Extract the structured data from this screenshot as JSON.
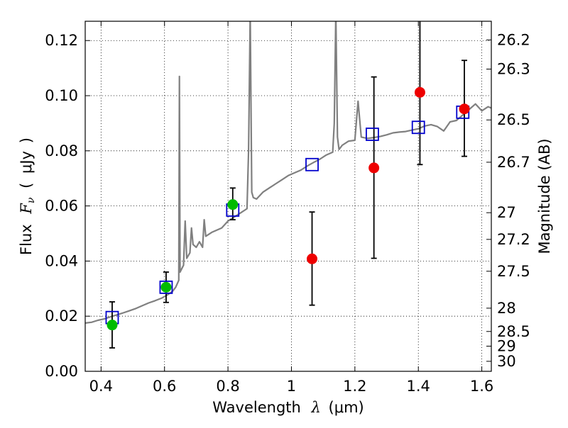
{
  "chart_data": {
    "type": "scatter",
    "xlabel": {
      "pre": "Wavelength",
      "sym": "λ",
      "open": "(",
      "unit": "μm",
      "close": ")"
    },
    "ylabel": {
      "pre": "Flux",
      "sym_main": "F",
      "sym_sub": "ν",
      "open": "(",
      "unit": "μJy",
      "close": ")"
    },
    "y2label": "Magnitude (AB)",
    "xlim": [
      0.35,
      1.63
    ],
    "ylim": [
      0.0,
      0.127
    ],
    "grid": true,
    "x_ticks": [
      {
        "v": 0.4,
        "label": "0.4"
      },
      {
        "v": 0.6,
        "label": "0.6"
      },
      {
        "v": 0.8,
        "label": "0.8"
      },
      {
        "v": 1.0,
        "label": "1"
      },
      {
        "v": 1.2,
        "label": "1.2"
      },
      {
        "v": 1.4,
        "label": "1.4"
      },
      {
        "v": 1.6,
        "label": "1.6"
      }
    ],
    "y_ticks": [
      {
        "v": 0.0,
        "label": "0.00"
      },
      {
        "v": 0.02,
        "label": "0.02"
      },
      {
        "v": 0.04,
        "label": "0.04"
      },
      {
        "v": 0.06,
        "label": "0.06"
      },
      {
        "v": 0.08,
        "label": "0.08"
      },
      {
        "v": 0.1,
        "label": "0.10"
      },
      {
        "v": 0.12,
        "label": "0.12"
      }
    ],
    "y2_ticks": [
      {
        "v": 26.2,
        "label": "26.2"
      },
      {
        "v": 26.3,
        "label": "26.3"
      },
      {
        "v": 26.5,
        "label": "26.5"
      },
      {
        "v": 26.7,
        "label": "26.7"
      },
      {
        "v": 27.0,
        "label": "27"
      },
      {
        "v": 27.2,
        "label": "27.2"
      },
      {
        "v": 27.5,
        "label": "27.5"
      },
      {
        "v": 28.0,
        "label": "28"
      },
      {
        "v": 28.5,
        "label": "28.5"
      },
      {
        "v": 29.0,
        "label": "29"
      },
      {
        "v": 30.0,
        "label": "30"
      }
    ],
    "model_spectrum": {
      "color": "#808080",
      "points": [
        [
          0.35,
          0.0175
        ],
        [
          0.37,
          0.0178
        ],
        [
          0.39,
          0.0185
        ],
        [
          0.41,
          0.019
        ],
        [
          0.43,
          0.0198
        ],
        [
          0.45,
          0.0205
        ],
        [
          0.47,
          0.0212
        ],
        [
          0.49,
          0.022
        ],
        [
          0.51,
          0.0228
        ],
        [
          0.53,
          0.0238
        ],
        [
          0.55,
          0.0248
        ],
        [
          0.57,
          0.0256
        ],
        [
          0.59,
          0.0265
        ],
        [
          0.61,
          0.0278
        ],
        [
          0.625,
          0.029
        ],
        [
          0.635,
          0.0305
        ],
        [
          0.645,
          0.033
        ],
        [
          0.647,
          0.107
        ],
        [
          0.649,
          0.036
        ],
        [
          0.66,
          0.0385
        ],
        [
          0.665,
          0.0545
        ],
        [
          0.67,
          0.041
        ],
        [
          0.68,
          0.043
        ],
        [
          0.685,
          0.052
        ],
        [
          0.69,
          0.046
        ],
        [
          0.7,
          0.045
        ],
        [
          0.71,
          0.047
        ],
        [
          0.72,
          0.045
        ],
        [
          0.725,
          0.055
        ],
        [
          0.73,
          0.049
        ],
        [
          0.75,
          0.0505
        ],
        [
          0.78,
          0.052
        ],
        [
          0.8,
          0.0545
        ],
        [
          0.82,
          0.056
        ],
        [
          0.84,
          0.0575
        ],
        [
          0.86,
          0.059
        ],
        [
          0.865,
          0.08
        ],
        [
          0.87,
          0.13
        ],
        [
          0.875,
          0.065
        ],
        [
          0.88,
          0.063
        ],
        [
          0.89,
          0.0625
        ],
        [
          0.91,
          0.065
        ],
        [
          0.93,
          0.0665
        ],
        [
          0.95,
          0.068
        ],
        [
          0.97,
          0.0695
        ],
        [
          0.99,
          0.071
        ],
        [
          1.01,
          0.072
        ],
        [
          1.03,
          0.073
        ],
        [
          1.05,
          0.0745
        ],
        [
          1.07,
          0.0758
        ],
        [
          1.09,
          0.077
        ],
        [
          1.11,
          0.0785
        ],
        [
          1.13,
          0.0795
        ],
        [
          1.135,
          0.09
        ],
        [
          1.14,
          0.13
        ],
        [
          1.145,
          0.085
        ],
        [
          1.15,
          0.0805
        ],
        [
          1.16,
          0.082
        ],
        [
          1.18,
          0.0835
        ],
        [
          1.2,
          0.0838
        ],
        [
          1.21,
          0.098
        ],
        [
          1.22,
          0.085
        ],
        [
          1.24,
          0.0845
        ],
        [
          1.26,
          0.0848
        ],
        [
          1.28,
          0.0852
        ],
        [
          1.3,
          0.0858
        ],
        [
          1.32,
          0.0865
        ],
        [
          1.34,
          0.0868
        ],
        [
          1.36,
          0.087
        ],
        [
          1.38,
          0.0875
        ],
        [
          1.4,
          0.088
        ],
        [
          1.42,
          0.089
        ],
        [
          1.44,
          0.0895
        ],
        [
          1.46,
          0.0888
        ],
        [
          1.48,
          0.0872
        ],
        [
          1.5,
          0.0905
        ],
        [
          1.52,
          0.091
        ],
        [
          1.54,
          0.093
        ],
        [
          1.56,
          0.095
        ],
        [
          1.58,
          0.097
        ],
        [
          1.6,
          0.0945
        ],
        [
          1.62,
          0.096
        ],
        [
          1.63,
          0.0955
        ]
      ]
    },
    "series": [
      {
        "marker": "square",
        "color": "#0000cc",
        "points": [
          {
            "x": 0.435,
            "y": 0.0195
          },
          {
            "x": 0.605,
            "y": 0.0305
          },
          {
            "x": 0.815,
            "y": 0.0585
          },
          {
            "x": 1.065,
            "y": 0.075
          },
          {
            "x": 1.255,
            "y": 0.086
          },
          {
            "x": 1.4,
            "y": 0.0885
          },
          {
            "x": 1.54,
            "y": 0.094
          }
        ]
      },
      {
        "marker": "circle",
        "color": "#00bb00",
        "points": [
          {
            "x": 0.435,
            "y": 0.0168,
            "err_lo": 0.0085,
            "err_hi": 0.0252
          },
          {
            "x": 0.605,
            "y": 0.0305,
            "err_lo": 0.025,
            "err_hi": 0.036
          },
          {
            "x": 0.815,
            "y": 0.0605,
            "err_lo": 0.055,
            "err_hi": 0.0665
          }
        ]
      },
      {
        "marker": "circle",
        "color": "#ee0000",
        "points": [
          {
            "x": 1.065,
            "y": 0.0408,
            "err_lo": 0.024,
            "err_hi": 0.0578
          },
          {
            "x": 1.26,
            "y": 0.0738,
            "err_lo": 0.041,
            "err_hi": 0.1068
          },
          {
            "x": 1.405,
            "y": 0.1012,
            "err_lo": 0.075,
            "err_hi": 0.13
          },
          {
            "x": 1.545,
            "y": 0.0952,
            "err_lo": 0.078,
            "err_hi": 0.1128
          }
        ]
      }
    ]
  }
}
